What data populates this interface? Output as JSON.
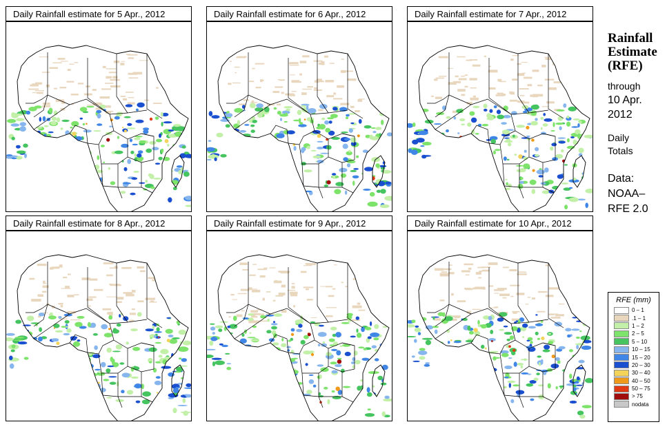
{
  "panels": [
    {
      "title": "Daily Rainfall estimate for  5 Apr., 2012",
      "seed": 5
    },
    {
      "title": "Daily Rainfall estimate for  6 Apr., 2012",
      "seed": 6
    },
    {
      "title": "Daily Rainfall estimate for  7 Apr., 2012",
      "seed": 7
    },
    {
      "title": "Daily Rainfall estimate for  8 Apr., 2012",
      "seed": 8
    },
    {
      "title": "Daily Rainfall estimate for  9 Apr., 2012",
      "seed": 9
    },
    {
      "title": "Daily Rainfall estimate for  10 Apr., 2012",
      "seed": 10
    }
  ],
  "sidebar": {
    "title_line1": "Rainfall",
    "title_line2": "Estimate",
    "title_line3": "(RFE)",
    "through": "through",
    "date_line1": "10 Apr.",
    "date_line2": "2012",
    "daily": "Daily",
    "totals": "Totals",
    "data_label": "Data:",
    "data_line1": "NOAA–",
    "data_line2": "RFE 2.0"
  },
  "legend": {
    "title": "RFE (mm)",
    "items": [
      {
        "label": "0 – 1",
        "color": "#ffffff"
      },
      {
        "label": ".1 – 1",
        "color": "#e8d6bd"
      },
      {
        "label": "1 – 2",
        "color": "#c2f0a8"
      },
      {
        "label": "2 – 5",
        "color": "#7ee36a"
      },
      {
        "label": "5 – 10",
        "color": "#46c460"
      },
      {
        "label": "10 – 15",
        "color": "#87b6ee"
      },
      {
        "label": "15 – 20",
        "color": "#3f86e6"
      },
      {
        "label": "20 – 30",
        "color": "#1a4fd0"
      },
      {
        "label": "30 – 40",
        "color": "#f3d35a"
      },
      {
        "label": "40 – 50",
        "color": "#f09a1c"
      },
      {
        "label": "50 – 75",
        "color": "#e23a12"
      },
      {
        "label": "> 75",
        "color": "#a00d0d"
      },
      {
        "label": "nodata",
        "color": "#c8c8c8"
      }
    ]
  }
}
